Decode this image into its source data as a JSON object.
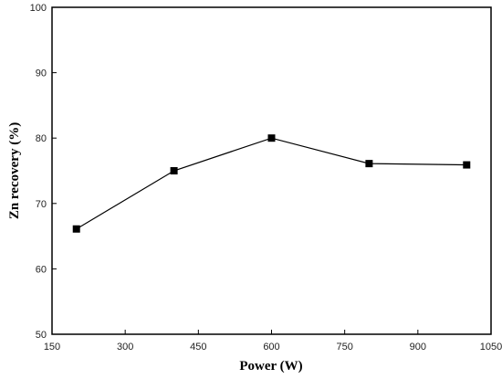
{
  "chart_data": {
    "type": "line",
    "title": "",
    "xlabel": "Power (W)",
    "ylabel": "Zn recovery (%)",
    "xlim": [
      150,
      1050
    ],
    "ylim": [
      50,
      100
    ],
    "xticks": [
      150,
      300,
      450,
      600,
      750,
      900,
      1050
    ],
    "yticks": [
      50,
      60,
      70,
      80,
      90,
      100
    ],
    "grid": false,
    "legend": "none",
    "series": [
      {
        "x": [
          200,
          400,
          600,
          800,
          1000
        ],
        "y": [
          66.1,
          75.0,
          80.0,
          76.1,
          75.9
        ],
        "marker": "square",
        "color": "#000000"
      }
    ]
  }
}
